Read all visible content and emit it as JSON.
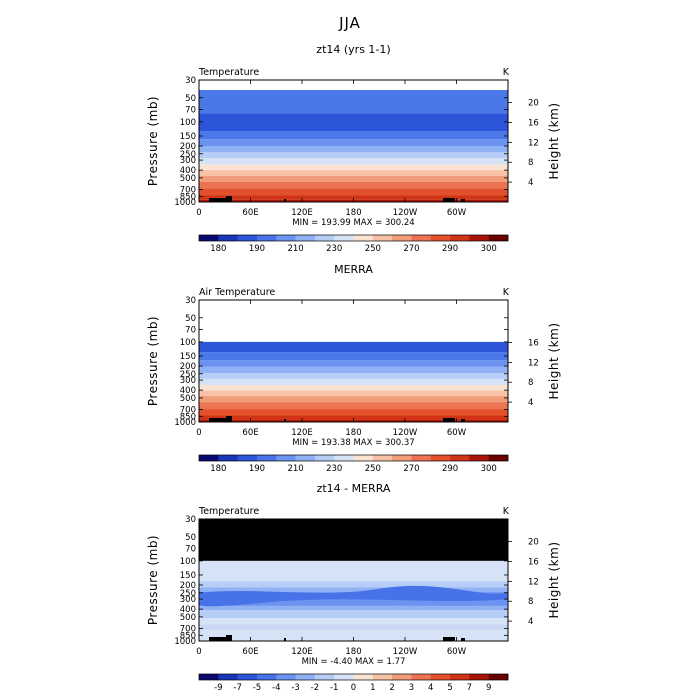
{
  "figure": {
    "title": "JJA"
  },
  "chart_data": [
    {
      "type": "contour",
      "title": "zt14 (yrs 1-1)",
      "variable_label": "Temperature",
      "units_label": "K",
      "xlabel": "",
      "ylabel": "Pressure (mb)",
      "y2label": "Height (km)",
      "x_ticks": [
        "0",
        "60E",
        "120E",
        "180",
        "120W",
        "60W"
      ],
      "y_ticks": [
        "30",
        "50",
        "70",
        "100",
        "150",
        "200",
        "250",
        "300",
        "400",
        "500",
        "700",
        "850",
        "1000"
      ],
      "y2_ticks": [
        "20",
        "16",
        "12",
        "8",
        "4"
      ],
      "min_max_text": "MIN = 193.99   MAX = 300.24",
      "min": 193.99,
      "max": 300.24,
      "colorbar_labels": [
        "180",
        "190",
        "210",
        "230",
        "250",
        "270",
        "290",
        "300"
      ]
    },
    {
      "type": "contour",
      "title": "MERRA",
      "variable_label": "Air Temperature",
      "units_label": "K",
      "xlabel": "",
      "ylabel": "Pressure (mb)",
      "y2label": "Height (km)",
      "x_ticks": [
        "0",
        "60E",
        "120E",
        "180",
        "120W",
        "60W"
      ],
      "y_ticks": [
        "30",
        "50",
        "70",
        "100",
        "150",
        "200",
        "250",
        "300",
        "400",
        "500",
        "700",
        "850",
        "1000"
      ],
      "y2_ticks": [
        "16",
        "12",
        "8",
        "4"
      ],
      "min_max_text": "MIN = 193.38   MAX = 300.37",
      "min": 193.38,
      "max": 300.37,
      "colorbar_labels": [
        "180",
        "190",
        "210",
        "230",
        "250",
        "270",
        "290",
        "300"
      ]
    },
    {
      "type": "contour",
      "title": "zt14 - MERRA",
      "variable_label": "Temperature",
      "units_label": "K",
      "xlabel": "",
      "ylabel": "Pressure (mb)",
      "y2label": "Height (km)",
      "x_ticks": [
        "0",
        "60E",
        "120E",
        "180",
        "120W",
        "60W"
      ],
      "y_ticks": [
        "30",
        "50",
        "70",
        "100",
        "150",
        "200",
        "250",
        "300",
        "400",
        "500",
        "700",
        "850",
        "1000"
      ],
      "y2_ticks": [
        "20",
        "16",
        "12",
        "8",
        "4"
      ],
      "min_max_text": "MIN =   -4.40   MAX =    1.77",
      "min": -4.4,
      "max": 1.77,
      "colorbar_labels": [
        "-9",
        "-7",
        "-5",
        "-4",
        "-3",
        "-2",
        "-1",
        "0",
        "1",
        "2",
        "3",
        "4",
        "5",
        "7",
        "9"
      ]
    }
  ]
}
